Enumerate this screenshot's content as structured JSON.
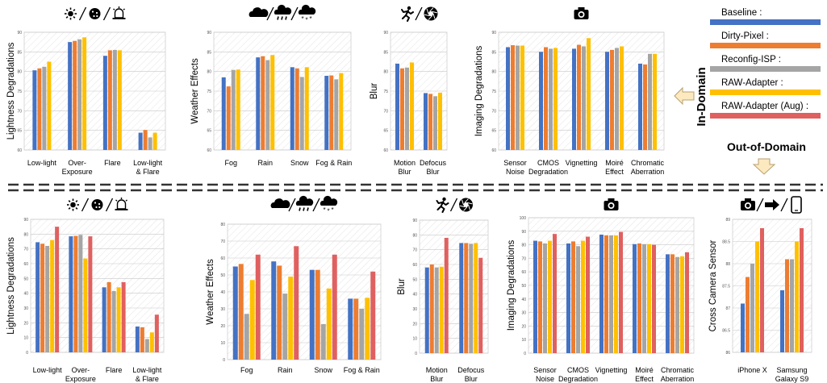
{
  "colors": {
    "baseline": "#4472C4",
    "dirty_pixel": "#ED7D31",
    "reconfig_isp": "#A5A5A5",
    "raw_adapter": "#FFC000",
    "raw_adapter_aug": "#E06060",
    "arrow_fill": "#FCE9C0",
    "arrow_stroke": "#B8A070"
  },
  "legend": {
    "entries": [
      {
        "label": "Baseline :",
        "color": "#4472C4"
      },
      {
        "label": "Dirty-Pixel :",
        "color": "#ED7D31"
      },
      {
        "label": "Reconfig-ISP :",
        "color": "#A5A5A5"
      },
      {
        "label": "RAW-Adapter :",
        "color": "#FFC000"
      },
      {
        "label": "RAW-Adapter (Aug) :",
        "color": "#E06060"
      }
    ],
    "in_domain_label": "In-Domain",
    "out_domain_label": "Out-of-Domain"
  },
  "chart_data": [
    {
      "id": "top-lightness",
      "type": "bar",
      "section": "in-domain",
      "ylabel": "Lightness Degradations",
      "ylim": [
        60,
        90
      ],
      "yticks": [
        60,
        65,
        70,
        75,
        80,
        85,
        90
      ],
      "icons": [
        "sun-icon",
        "night-icon",
        "siren-icon"
      ],
      "categories": [
        "Low-light",
        "Over-\nExposure",
        "Flare",
        "Low-light\n& Flare"
      ],
      "series": [
        {
          "key": "baseline",
          "values": [
            80.3,
            87.5,
            84,
            64.4
          ]
        },
        {
          "key": "dirty_pixel",
          "values": [
            80.8,
            87.8,
            85.4,
            65.1
          ]
        },
        {
          "key": "reconfig_isp",
          "values": [
            81.2,
            88.2,
            85.5,
            63.2
          ]
        },
        {
          "key": "raw_adapter",
          "values": [
            82.5,
            88.7,
            85.4,
            64.4
          ]
        }
      ]
    },
    {
      "id": "top-weather",
      "type": "bar",
      "section": "in-domain",
      "ylabel": "Weather Effects",
      "ylim": [
        60,
        90
      ],
      "yticks": [
        60,
        65,
        70,
        75,
        80,
        85,
        90
      ],
      "icons": [
        "cloud-icon",
        "rain-icon",
        "snow-icon"
      ],
      "categories": [
        "Fog",
        "Rain",
        "Snow",
        "Fog & Rain"
      ],
      "series": [
        {
          "key": "baseline",
          "values": [
            78.5,
            83.6,
            81.1,
            78.9
          ]
        },
        {
          "key": "dirty_pixel",
          "values": [
            76.2,
            83.9,
            80.8,
            79.0
          ]
        },
        {
          "key": "reconfig_isp",
          "values": [
            80.4,
            82.9,
            78.6,
            78.0
          ]
        },
        {
          "key": "raw_adapter",
          "values": [
            80.5,
            84.2,
            81.1,
            79.6
          ]
        }
      ]
    },
    {
      "id": "top-blur",
      "type": "bar",
      "section": "in-domain",
      "ylabel": "Blur",
      "ylim": [
        60,
        90
      ],
      "yticks": [
        60,
        65,
        70,
        75,
        80,
        85,
        90
      ],
      "icons": [
        "running-icon",
        "aperture-icon"
      ],
      "categories": [
        "Motion\nBlur",
        "Defocus\nBlur"
      ],
      "series": [
        {
          "key": "baseline",
          "values": [
            82.0,
            74.5
          ]
        },
        {
          "key": "dirty_pixel",
          "values": [
            80.8,
            74.3
          ]
        },
        {
          "key": "reconfig_isp",
          "values": [
            81.0,
            73.7
          ]
        },
        {
          "key": "raw_adapter",
          "values": [
            82.3,
            74.6
          ]
        }
      ]
    },
    {
      "id": "top-imaging",
      "type": "bar",
      "section": "in-domain",
      "ylabel": "Imaging Degradations",
      "ylim": [
        60,
        90
      ],
      "yticks": [
        60,
        65,
        70,
        75,
        80,
        85,
        90
      ],
      "icons": [
        "camera-icon"
      ],
      "categories": [
        "Sensor\nNoise",
        "CMOS\nDegradation",
        "Vignetting",
        "Moiré\nEffect",
        "Chromatic\nAberration"
      ],
      "series": [
        {
          "key": "baseline",
          "values": [
            86.2,
            85.0,
            85.8,
            85.0,
            82.0
          ]
        },
        {
          "key": "dirty_pixel",
          "values": [
            86.7,
            86.2,
            86.8,
            85.5,
            81.8
          ]
        },
        {
          "key": "reconfig_isp",
          "values": [
            86.6,
            85.8,
            86.4,
            86.0,
            84.5
          ]
        },
        {
          "key": "raw_adapter",
          "values": [
            86.6,
            86.0,
            88.5,
            86.4,
            84.5
          ]
        }
      ]
    },
    {
      "id": "bottom-lightness",
      "type": "bar",
      "section": "out-of-domain",
      "ylabel": "Lightness Degradations",
      "ylim": [
        0,
        90
      ],
      "yticks": [
        0,
        10,
        20,
        30,
        40,
        50,
        60,
        70,
        80,
        90
      ],
      "icons": [
        "sun-icon",
        "night-icon",
        "siren-icon"
      ],
      "categories": [
        "Low-light",
        "Over-\nExposure",
        "Flare",
        "Low-light\n& Flare"
      ],
      "series": [
        {
          "key": "baseline",
          "values": [
            74.5,
            78.5,
            44.0,
            17.5
          ]
        },
        {
          "key": "dirty_pixel",
          "values": [
            73.5,
            78.8,
            47.5,
            17.0
          ]
        },
        {
          "key": "reconfig_isp",
          "values": [
            72.0,
            79.5,
            41.5,
            9.0
          ]
        },
        {
          "key": "raw_adapter",
          "values": [
            76.0,
            63.5,
            44.0,
            13.5
          ]
        },
        {
          "key": "raw_adapter_aug",
          "values": [
            85.0,
            78.5,
            47.5,
            25.5
          ]
        }
      ]
    },
    {
      "id": "bottom-weather",
      "type": "bar",
      "section": "out-of-domain",
      "ylabel": "Weather Effects",
      "ylim": [
        0,
        80
      ],
      "yticks": [
        0,
        10,
        20,
        30,
        40,
        50,
        60,
        70,
        80
      ],
      "icons": [
        "cloud-icon",
        "rain-icon",
        "snow-icon"
      ],
      "categories": [
        "Fog",
        "Rain",
        "Snow",
        "Fog & Rain"
      ],
      "series": [
        {
          "key": "baseline",
          "values": [
            55.0,
            58.0,
            53.0,
            36.0
          ]
        },
        {
          "key": "dirty_pixel",
          "values": [
            56.5,
            55.5,
            53.0,
            36.0
          ]
        },
        {
          "key": "reconfig_isp",
          "values": [
            27.0,
            39.0,
            21.0,
            30.0
          ]
        },
        {
          "key": "raw_adapter",
          "values": [
            47.0,
            49.0,
            42.0,
            36.5
          ]
        },
        {
          "key": "raw_adapter_aug",
          "values": [
            62.0,
            67.0,
            62.0,
            52.0
          ]
        }
      ]
    },
    {
      "id": "bottom-blur",
      "type": "bar",
      "section": "out-of-domain",
      "ylabel": "Blur",
      "ylim": [
        0,
        90
      ],
      "yticks": [
        0,
        10,
        20,
        30,
        40,
        50,
        60,
        70,
        80,
        90
      ],
      "icons": [
        "running-icon",
        "aperture-icon"
      ],
      "categories": [
        "Motion\nBlur",
        "Defocus\nBlur"
      ],
      "series": [
        {
          "key": "baseline",
          "values": [
            58.0,
            74.5
          ]
        },
        {
          "key": "dirty_pixel",
          "values": [
            60.0,
            74.5
          ]
        },
        {
          "key": "reconfig_isp",
          "values": [
            58.0,
            74.0
          ]
        },
        {
          "key": "raw_adapter",
          "values": [
            58.5,
            74.5
          ]
        },
        {
          "key": "raw_adapter_aug",
          "values": [
            78.0,
            64.5
          ]
        }
      ]
    },
    {
      "id": "bottom-imaging",
      "type": "bar",
      "section": "out-of-domain",
      "ylabel": "Imaging Degradations",
      "ylim": [
        0,
        100
      ],
      "yticks": [
        0,
        10,
        20,
        30,
        40,
        50,
        60,
        70,
        80,
        90,
        100
      ],
      "icons": [
        "camera-icon"
      ],
      "categories": [
        "Sensor\nNoise",
        "CMOS\nDegradation",
        "Vignetting",
        "Moiré\nEffect",
        "Chromatic\nAberration"
      ],
      "series": [
        {
          "key": "baseline",
          "values": [
            83.0,
            81.0,
            87.5,
            80.5,
            73.0
          ]
        },
        {
          "key": "dirty_pixel",
          "values": [
            82.5,
            82.5,
            87.0,
            81.0,
            73.0
          ]
        },
        {
          "key": "reconfig_isp",
          "values": [
            81.0,
            79.0,
            87.0,
            80.5,
            71.0
          ]
        },
        {
          "key": "raw_adapter",
          "values": [
            83.0,
            83.0,
            87.0,
            80.5,
            71.5
          ]
        },
        {
          "key": "raw_adapter_aug",
          "values": [
            88.0,
            86.0,
            89.5,
            80.0,
            74.5
          ]
        }
      ]
    },
    {
      "id": "bottom-camera",
      "type": "bar",
      "section": "out-of-domain",
      "ylabel": "Cross Camera Sensor",
      "ylim": [
        86,
        89
      ],
      "yticks": [
        86,
        86.5,
        87,
        87.5,
        88,
        88.5,
        89
      ],
      "icons": [
        "camera-icon",
        "arrow-right-icon",
        "phone-icon"
      ],
      "categories": [
        "iPhone X",
        "Samsung\nGalaxy S9"
      ],
      "series": [
        {
          "key": "baseline",
          "values": [
            87.1,
            87.4
          ]
        },
        {
          "key": "dirty_pixel",
          "values": [
            87.7,
            88.1
          ]
        },
        {
          "key": "reconfig_isp",
          "values": [
            88.0,
            88.1
          ]
        },
        {
          "key": "raw_adapter",
          "values": [
            88.5,
            88.5
          ]
        },
        {
          "key": "raw_adapter_aug",
          "values": [
            88.8,
            88.8
          ]
        }
      ]
    }
  ]
}
